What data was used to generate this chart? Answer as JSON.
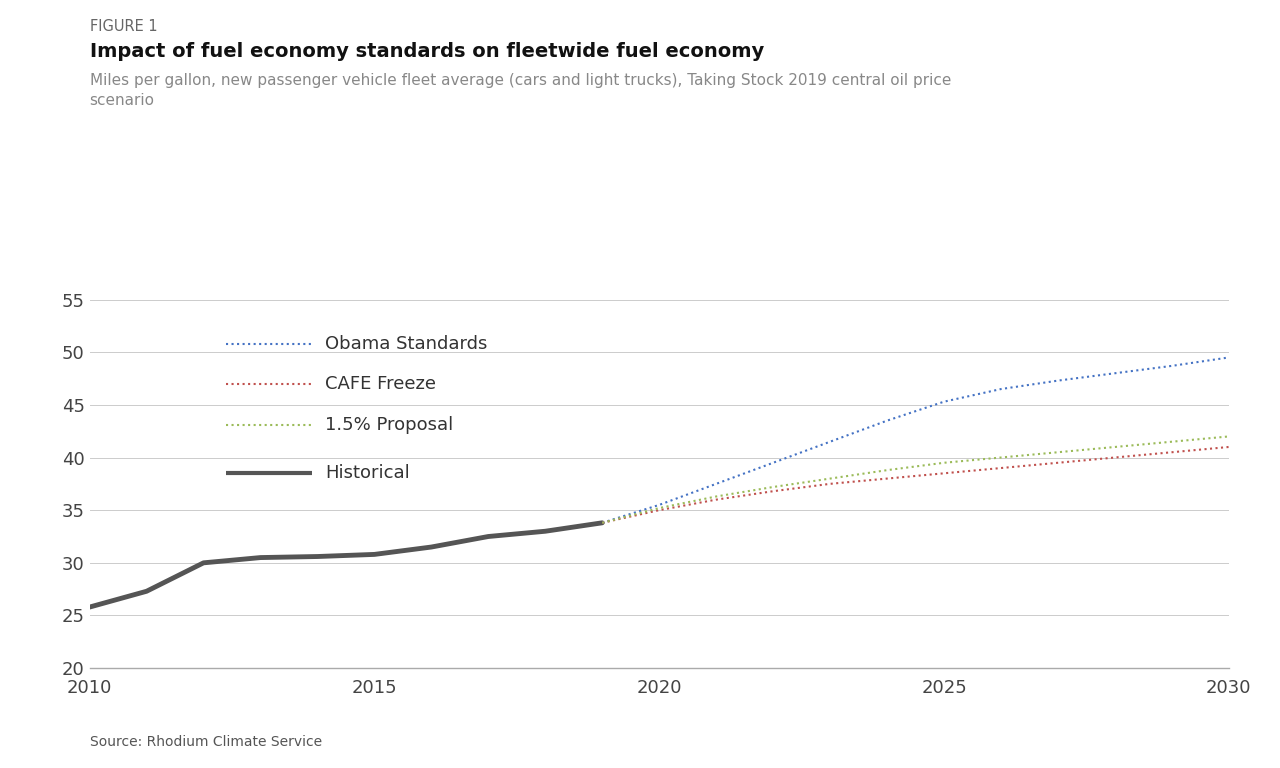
{
  "figure_label": "FIGURE 1",
  "title": "Impact of fuel economy standards on fleetwide fuel economy",
  "subtitle": "Miles per gallon, new passenger vehicle fleet average (cars and light trucks), Taking Stock 2019 central oil price\nscenario",
  "source": "Source: Rhodium Climate Service",
  "xlim": [
    2010,
    2030
  ],
  "ylim": [
    20,
    55
  ],
  "yticks": [
    20,
    25,
    30,
    35,
    40,
    45,
    50,
    55
  ],
  "xticks": [
    2010,
    2015,
    2020,
    2025,
    2030
  ],
  "background_color": "#ffffff",
  "historical": {
    "years": [
      2010,
      2011,
      2012,
      2013,
      2014,
      2015,
      2016,
      2017,
      2018,
      2019
    ],
    "values": [
      25.8,
      27.3,
      30.0,
      30.5,
      30.6,
      30.8,
      31.5,
      32.5,
      33.0,
      33.8
    ],
    "color": "#555555",
    "linewidth": 3.5,
    "label": "Historical"
  },
  "obama": {
    "years": [
      2019,
      2020,
      2021,
      2022,
      2023,
      2024,
      2025,
      2026,
      2027,
      2028,
      2029,
      2030
    ],
    "values": [
      33.8,
      35.5,
      37.5,
      39.5,
      41.5,
      43.5,
      45.3,
      46.5,
      47.3,
      48.0,
      48.7,
      49.5
    ],
    "color": "#4472c4",
    "linewidth": 1.5,
    "label": "Obama Standards"
  },
  "cafe_freeze": {
    "years": [
      2019,
      2020,
      2021,
      2022,
      2023,
      2024,
      2025,
      2026,
      2027,
      2028,
      2029,
      2030
    ],
    "values": [
      33.8,
      35.0,
      36.0,
      36.8,
      37.5,
      38.0,
      38.5,
      39.0,
      39.5,
      40.0,
      40.5,
      41.0
    ],
    "color": "#c0504d",
    "linewidth": 1.5,
    "label": "CAFE Freeze"
  },
  "proposal_15": {
    "years": [
      2019,
      2020,
      2021,
      2022,
      2023,
      2024,
      2025,
      2026,
      2027,
      2028,
      2029,
      2030
    ],
    "values": [
      33.8,
      35.2,
      36.3,
      37.2,
      38.0,
      38.8,
      39.5,
      40.0,
      40.5,
      41.0,
      41.5,
      42.0
    ],
    "color": "#9bbb59",
    "linewidth": 1.5,
    "label": "1.5% Proposal"
  }
}
